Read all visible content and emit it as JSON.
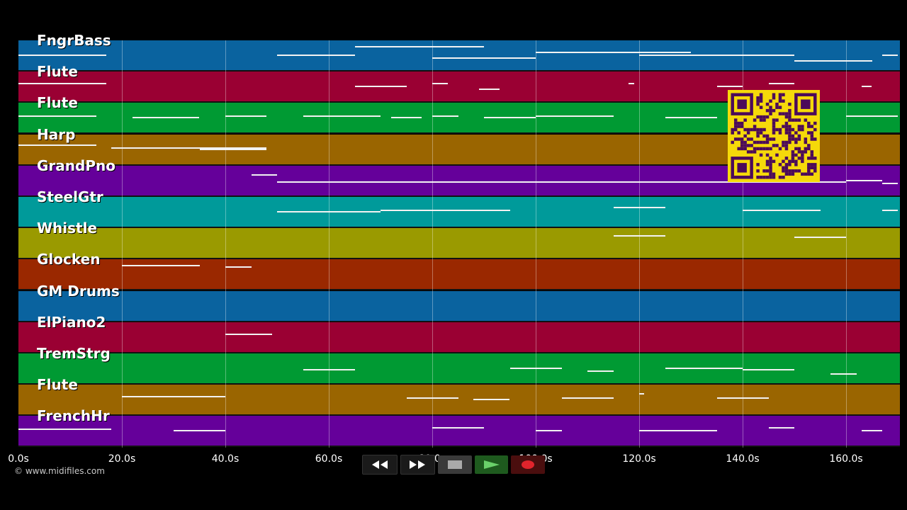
{
  "tracks": [
    {
      "name": "FngrBass",
      "color": "#0a639f",
      "notes": [
        [
          0,
          17,
          0.5
        ],
        [
          50,
          65,
          0.5
        ],
        [
          65,
          90,
          0.2
        ],
        [
          80,
          100,
          0.6
        ],
        [
          100,
          130,
          0.4
        ],
        [
          120,
          150,
          0.5
        ],
        [
          150,
          165,
          0.7
        ],
        [
          167,
          170,
          0.5
        ]
      ]
    },
    {
      "name": "Flute",
      "color": "#9a0033",
      "notes": [
        [
          0,
          17,
          0.4
        ],
        [
          65,
          75,
          0.5
        ],
        [
          80,
          83,
          0.4
        ],
        [
          89,
          93,
          0.6
        ],
        [
          118,
          119,
          0.4
        ],
        [
          135,
          140,
          0.5
        ],
        [
          145,
          150,
          0.4
        ],
        [
          163,
          165,
          0.5
        ]
      ]
    },
    {
      "name": "Flute",
      "color": "#009a33",
      "notes": [
        [
          0,
          15,
          0.45
        ],
        [
          22,
          35,
          0.5
        ],
        [
          40,
          48,
          0.45
        ],
        [
          55,
          70,
          0.45
        ],
        [
          72,
          78,
          0.5
        ],
        [
          80,
          85,
          0.45
        ],
        [
          90,
          100,
          0.5
        ],
        [
          100,
          115,
          0.45
        ],
        [
          125,
          135,
          0.5
        ],
        [
          160,
          170,
          0.45
        ]
      ]
    },
    {
      "name": "Harp",
      "color": "#9a6500",
      "notes": [
        [
          0,
          15,
          0.35
        ],
        [
          18,
          48,
          0.45
        ],
        [
          35,
          48,
          0.5
        ]
      ]
    },
    {
      "name": "GrandPno",
      "color": "#65009a",
      "notes": [
        [
          45,
          50,
          0.3
        ],
        [
          50,
          70,
          0.55
        ],
        [
          70,
          100,
          0.55
        ],
        [
          100,
          130,
          0.55
        ],
        [
          130,
          160,
          0.55
        ],
        [
          160,
          167,
          0.5
        ],
        [
          167,
          170,
          0.6
        ]
      ]
    },
    {
      "name": "SteelGtr",
      "color": "#009a9a",
      "notes": [
        [
          50,
          70,
          0.5
        ],
        [
          70,
          95,
          0.45
        ],
        [
          115,
          125,
          0.35
        ],
        [
          140,
          155,
          0.45
        ],
        [
          167,
          170,
          0.45
        ]
      ]
    },
    {
      "name": "Whistle",
      "color": "#9a9a00",
      "notes": [
        [
          115,
          125,
          0.25
        ],
        [
          150,
          160,
          0.3
        ]
      ]
    },
    {
      "name": "Glocken",
      "color": "#9a2800",
      "notes": [
        [
          20,
          35,
          0.2
        ],
        [
          40,
          45,
          0.25
        ]
      ]
    },
    {
      "name": "GM Drums",
      "color": "#0a639f",
      "notes": []
    },
    {
      "name": "ElPiano2",
      "color": "#9a0033",
      "notes": [
        [
          40,
          49,
          0.4
        ]
      ]
    },
    {
      "name": "TremStrg",
      "color": "#009a33",
      "notes": [
        [
          55,
          65,
          0.55
        ],
        [
          95,
          105,
          0.5
        ],
        [
          110,
          115,
          0.6
        ],
        [
          125,
          140,
          0.5
        ],
        [
          140,
          150,
          0.55
        ],
        [
          157,
          162,
          0.7
        ]
      ]
    },
    {
      "name": "Flute",
      "color": "#9a6500",
      "notes": [
        [
          20,
          40,
          0.4
        ],
        [
          75,
          85,
          0.45
        ],
        [
          88,
          95,
          0.5
        ],
        [
          105,
          115,
          0.45
        ],
        [
          120,
          121,
          0.3
        ],
        [
          135,
          145,
          0.45
        ]
      ]
    },
    {
      "name": "FrenchHr",
      "color": "#65009a",
      "notes": [
        [
          0,
          18,
          0.45
        ],
        [
          30,
          40,
          0.5
        ],
        [
          80,
          90,
          0.4
        ],
        [
          100,
          105,
          0.5
        ],
        [
          120,
          135,
          0.5
        ],
        [
          145,
          150,
          0.4
        ],
        [
          163,
          167,
          0.5
        ]
      ]
    }
  ],
  "axis": {
    "min": 0,
    "max": 170,
    "ticks": [
      {
        "value": 0,
        "label": "0.0s"
      },
      {
        "value": 20,
        "label": "20.0s"
      },
      {
        "value": 40,
        "label": "40.0s"
      },
      {
        "value": 60,
        "label": "60.0s"
      },
      {
        "value": 80,
        "label": "80.0s"
      },
      {
        "value": 100,
        "label": "100.0s"
      },
      {
        "value": 120,
        "label": "120.0s"
      },
      {
        "value": 140,
        "label": "140.0s"
      },
      {
        "value": 160,
        "label": "160.0s"
      }
    ]
  },
  "copyright": "© www.midifiles.com",
  "transport": {
    "rewind_icon": "rewind-icon",
    "fastforward_icon": "fast-forward-icon",
    "stop_icon": "stop-icon",
    "play_icon": "play-icon",
    "record_icon": "record-icon",
    "play_color": "#2f8f2f",
    "record_color": "#e0242c"
  },
  "qr": {
    "icon": "qr-code-icon",
    "color": "#f5d90a",
    "module_color": "#4b0a5a"
  }
}
